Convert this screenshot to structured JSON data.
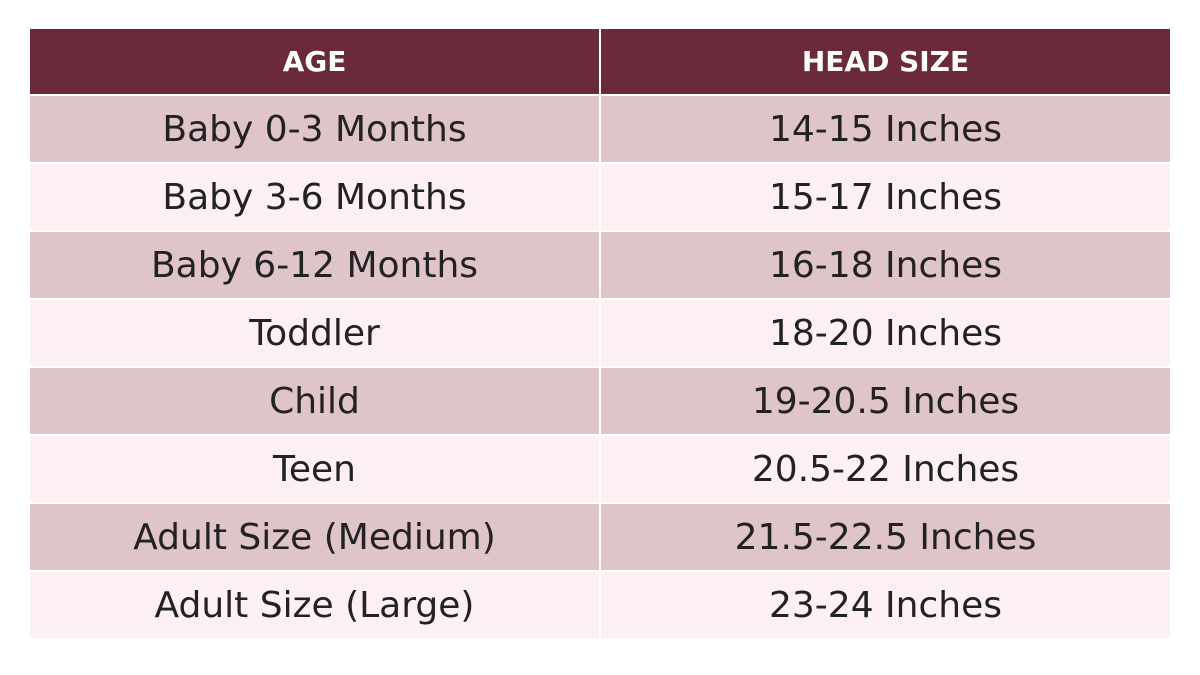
{
  "table": {
    "headers": [
      "AGE",
      "HEAD SIZE"
    ],
    "rows": [
      [
        "Baby 0-3 Months",
        "14-15 Inches"
      ],
      [
        "Baby 3-6 Months",
        "15-17 Inches"
      ],
      [
        "Baby 6-12 Months",
        "16-18 Inches"
      ],
      [
        "Toddler",
        "18-20 Inches"
      ],
      [
        "Child",
        "19-20.5 Inches"
      ],
      [
        "Teen",
        "20.5-22 Inches"
      ],
      [
        "Adult Size (Medium)",
        "21.5-22.5 Inches"
      ],
      [
        "Adult Size (Large)",
        "23-24 Inches"
      ]
    ]
  }
}
